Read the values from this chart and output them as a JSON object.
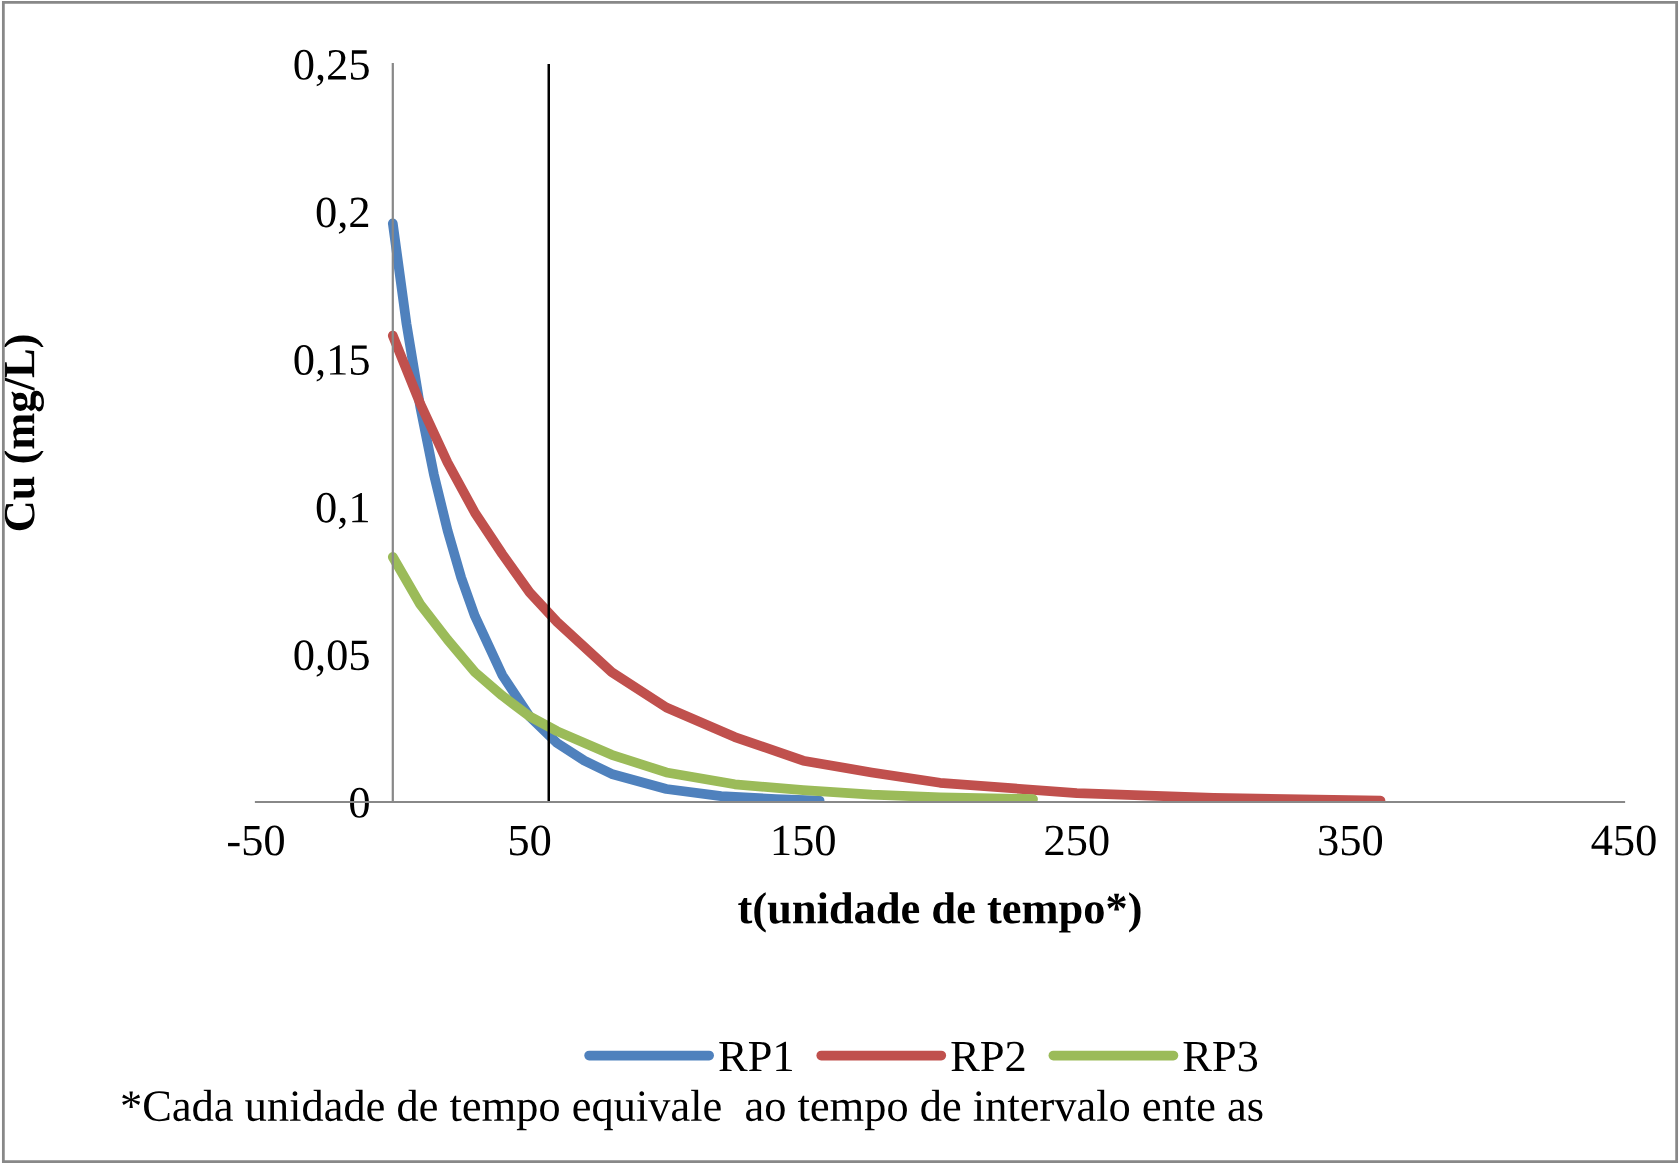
{
  "chart_data": {
    "type": "line",
    "xlabel": "t(unidade de tempo*)",
    "ylabel": "Cu (mg/L)",
    "xlim": [
      -50,
      450
    ],
    "xticks": [
      -50,
      50,
      150,
      250,
      350,
      450
    ],
    "ylim": [
      0,
      0.25
    ],
    "yticks": [
      {
        "value": 0,
        "label": "0"
      },
      {
        "value": 0.05,
        "label": "0,05"
      },
      {
        "value": 0.1,
        "label": "0,1"
      },
      {
        "value": 0.15,
        "label": "0,15"
      },
      {
        "value": 0.2,
        "label": "0,2"
      },
      {
        "value": 0.25,
        "label": "0,25"
      }
    ],
    "grid": false,
    "legend": "bottom",
    "marker": "none",
    "line_style": "solid",
    "series": [
      {
        "name": "RP1",
        "color": "#4f81bd",
        "x": [
          0,
          5,
          10,
          15,
          20,
          25,
          30,
          40,
          50,
          60,
          70,
          80,
          100,
          120,
          140,
          156
        ],
        "values": [
          0.196,
          0.162,
          0.134,
          0.111,
          0.092,
          0.076,
          0.063,
          0.043,
          0.029,
          0.02,
          0.014,
          0.0095,
          0.0044,
          0.002,
          0.001,
          0.0005
        ]
      },
      {
        "name": "RP2",
        "color": "#c0504d",
        "x": [
          0,
          10,
          20,
          30,
          40,
          50,
          60,
          80,
          100,
          125,
          150,
          175,
          200,
          250,
          300,
          361
        ],
        "values": [
          0.158,
          0.135,
          0.115,
          0.098,
          0.084,
          0.071,
          0.061,
          0.044,
          0.032,
          0.022,
          0.014,
          0.01,
          0.0065,
          0.003,
          0.0014,
          0.0005
        ]
      },
      {
        "name": "RP3",
        "color": "#9bbb59",
        "x": [
          0,
          10,
          20,
          30,
          40,
          50,
          60,
          80,
          100,
          125,
          150,
          175,
          200,
          234
        ],
        "values": [
          0.083,
          0.067,
          0.055,
          0.044,
          0.036,
          0.029,
          0.024,
          0.016,
          0.01,
          0.006,
          0.004,
          0.0025,
          0.0016,
          0.001
        ]
      }
    ],
    "ref_lines": [
      {
        "axis": "x",
        "value": 57,
        "color": "#000000"
      }
    ],
    "annotations": [
      "*Cada unidade de tempo equivale  ao tempo de intervalo ente as"
    ]
  }
}
